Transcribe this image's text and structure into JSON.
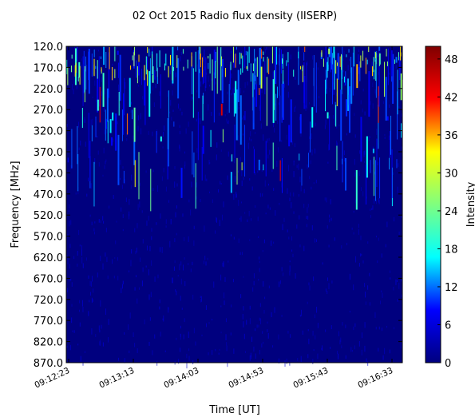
{
  "chart_data": {
    "type": "heatmap",
    "title": "02 Oct 2015 Radio flux density (IISERP)",
    "xlabel": "Time [UT]",
    "ylabel": "Frequency [MHz]",
    "colorbar_label": "Intensity",
    "x_ticks": [
      "09:12:23",
      "09:13:13",
      "09:14:03",
      "09:14:53",
      "09:15:43",
      "09:16:33"
    ],
    "y_ticks": [
      "120.0",
      "170.0",
      "220.0",
      "270.0",
      "320.0",
      "370.0",
      "420.0",
      "470.0",
      "520.0",
      "570.0",
      "620.0",
      "670.0",
      "720.0",
      "770.0",
      "820.0",
      "870.0"
    ],
    "y_range_mhz": [
      120.0,
      870.0
    ],
    "colorbar_ticks": [
      "0",
      "6",
      "12",
      "18",
      "24",
      "30",
      "36",
      "42",
      "48"
    ],
    "colorbar_range": [
      0,
      50
    ],
    "colormap": "jet",
    "colormap_stops": [
      "#00007f",
      "#0000ff",
      "#00ffff",
      "#7fff7f",
      "#ffff00",
      "#ff0000",
      "#7f0000"
    ],
    "background_intensity": 2,
    "enhanced_band_mhz": [
      120,
      420
    ],
    "grid": false
  }
}
